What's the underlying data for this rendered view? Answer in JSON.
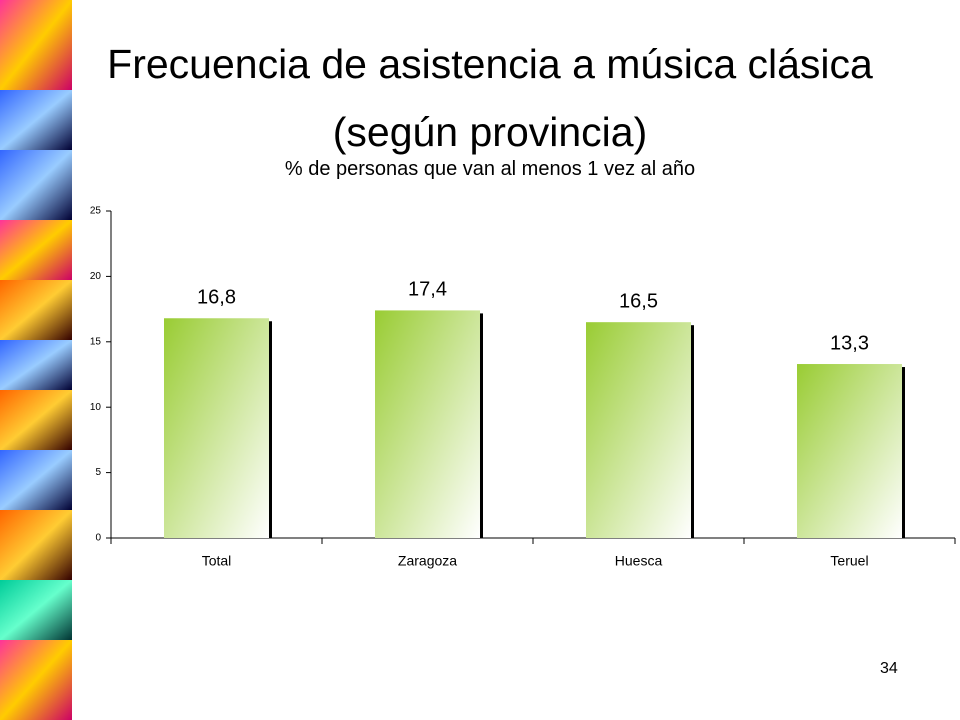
{
  "chart_data": {
    "type": "bar",
    "title": "Frecuencia de asistencia a música clásica (según provincia)",
    "subtitle": "% de personas que van al menos 1 vez al año",
    "categories": [
      "Total",
      "Zaragoza",
      "Huesca",
      "Teruel"
    ],
    "values": [
      16.8,
      17.4,
      16.5,
      13.3
    ],
    "value_labels": [
      "16,8",
      "17,4",
      "16,5",
      "13,3"
    ],
    "color": "#99cc33",
    "ylim": [
      0,
      25
    ],
    "yticks": [
      0,
      5,
      10,
      15,
      20,
      25
    ]
  },
  "page_number": "34"
}
